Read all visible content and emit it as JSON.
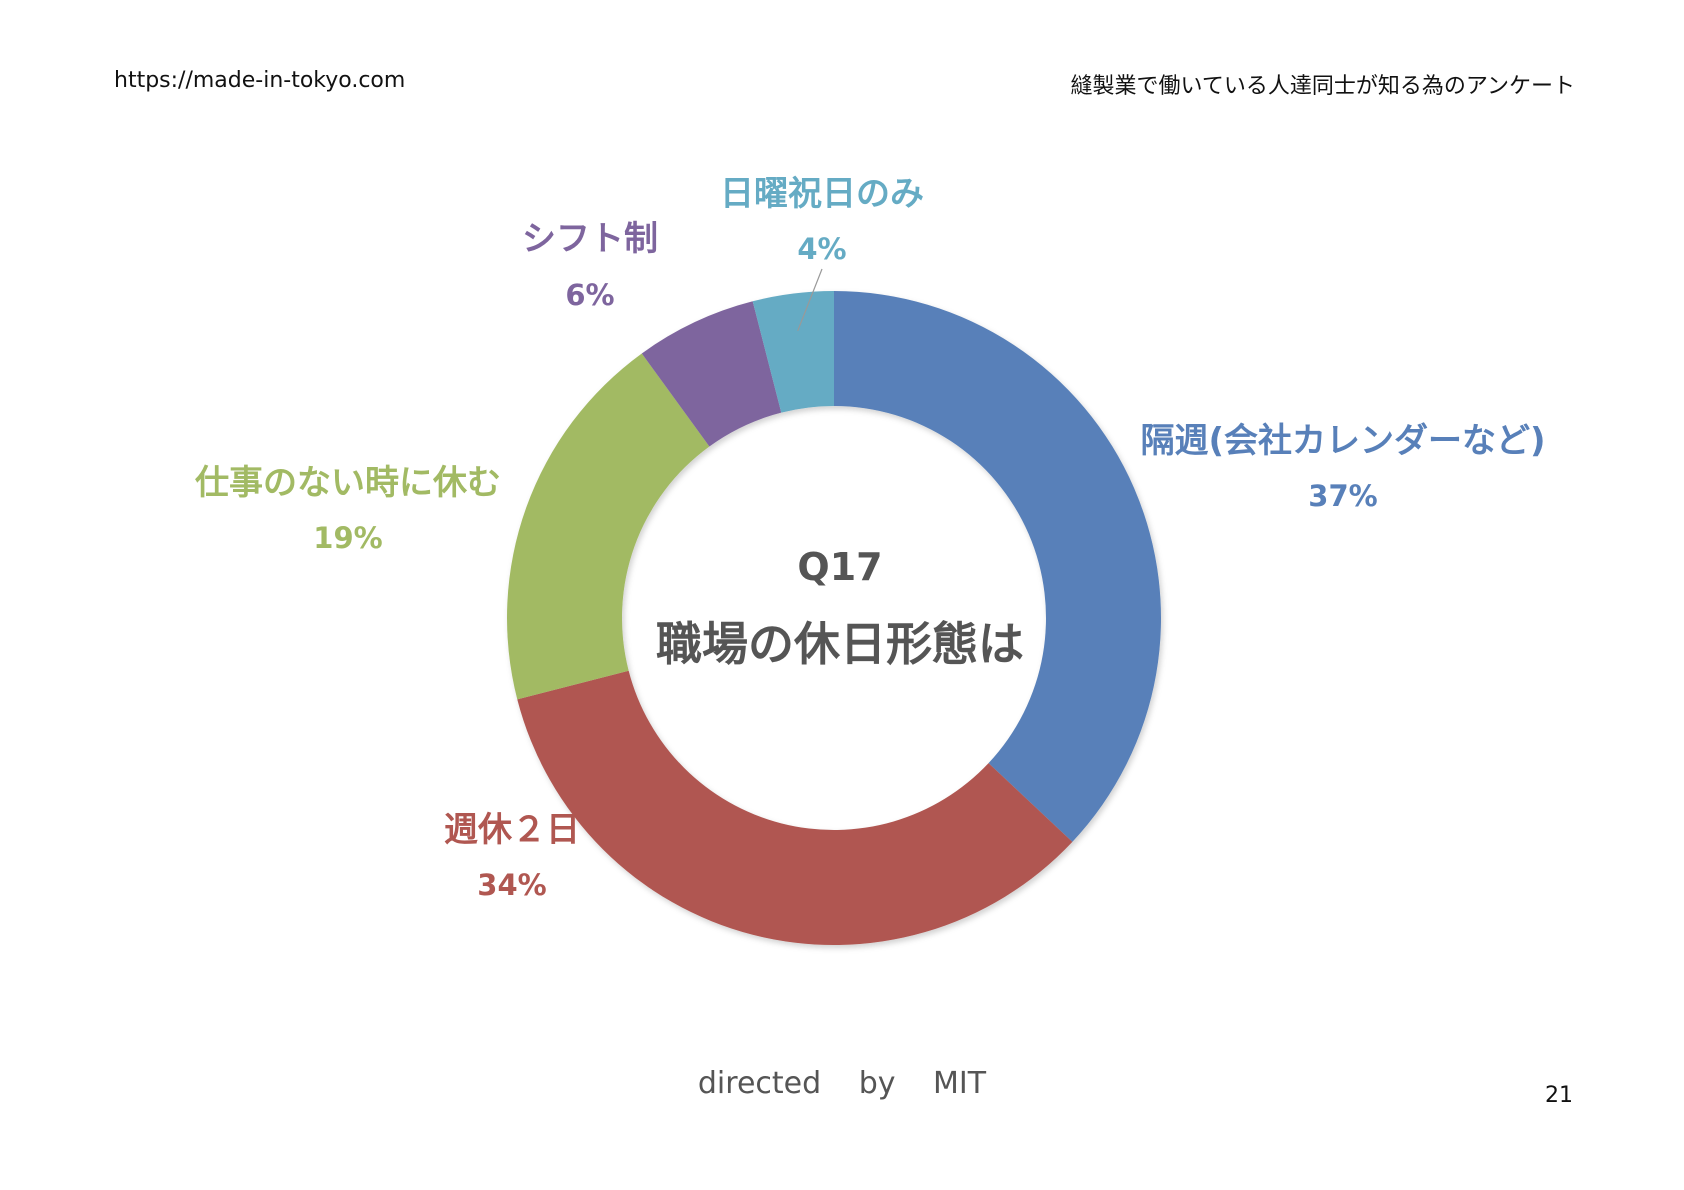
{
  "header": {
    "url": "https://made-in-tokyo.com",
    "survey_title": "縫製業で働いている人達同士が知る為のアンケート"
  },
  "chart_data": {
    "type": "pie",
    "donut": true,
    "title": "Q17",
    "subtitle": "職場の休日形態は",
    "slices": [
      {
        "label": "隔週(会社カレンダーなど)",
        "value": 37,
        "value_label": "37%",
        "color": "#5880b9"
      },
      {
        "label": "週休２日",
        "value": 34,
        "value_label": "34%",
        "color": "#b05751"
      },
      {
        "label": "仕事のない時に休む",
        "value": 19,
        "value_label": "19%",
        "color": "#a2ba64"
      },
      {
        "label": "シフト制",
        "value": 6,
        "value_label": "6%",
        "color": "#7e659e"
      },
      {
        "label": "日曜祝日のみ",
        "value": 4,
        "value_label": "4%",
        "color": "#65abc4"
      }
    ]
  },
  "footer": {
    "credit": "directed by MIT"
  },
  "page_number": "21"
}
